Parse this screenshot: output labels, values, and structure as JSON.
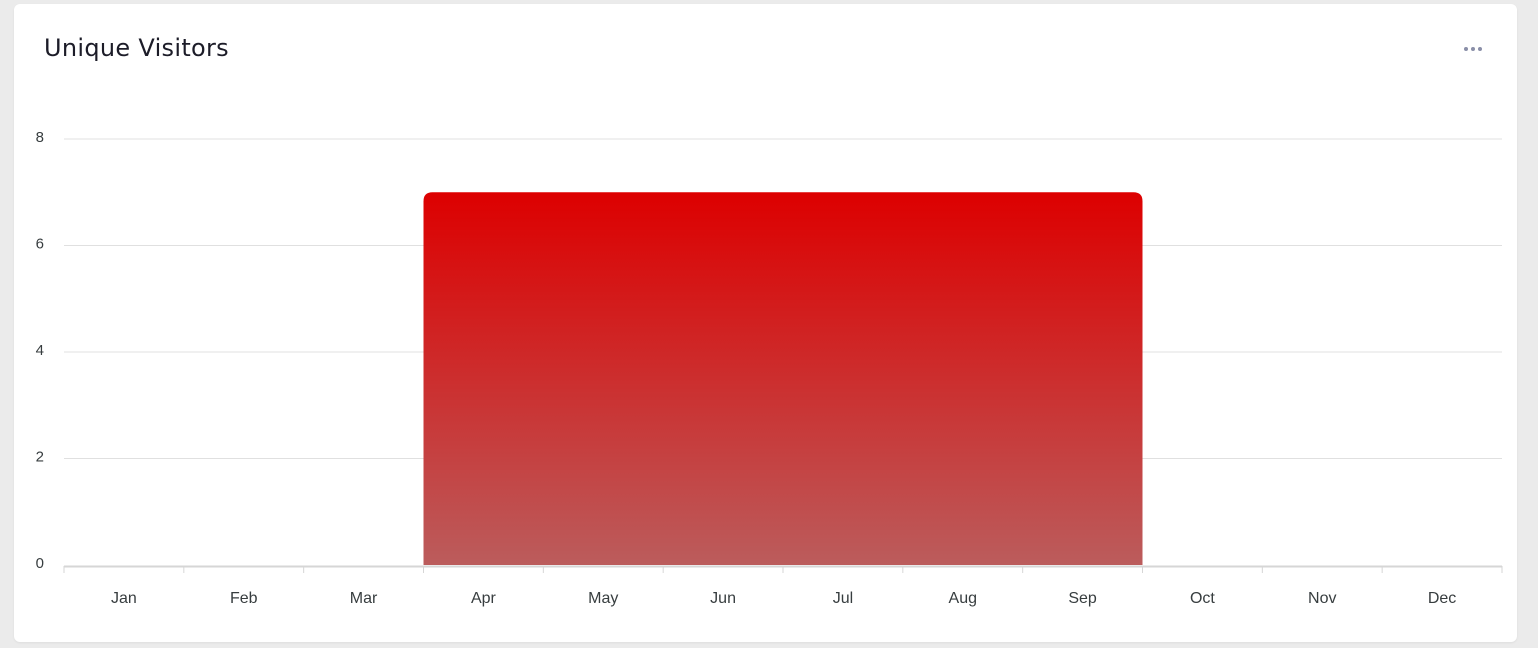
{
  "card": {
    "title": "Unique Visitors",
    "menu_icon": "more-horizontal-icon"
  },
  "colors": {
    "bar_top": "#dd0000",
    "bar_bottom": "#bb5c5c",
    "grid": "#e0e0e0",
    "axis": "#d6d6d6"
  },
  "chart_data": {
    "type": "bar",
    "title": "Unique Visitors",
    "categories": [
      "Jan",
      "Feb",
      "Mar",
      "Apr",
      "May",
      "Jun",
      "Jul",
      "Aug",
      "Sep",
      "Oct",
      "Nov",
      "Dec"
    ],
    "bars": [
      {
        "from": "Apr",
        "to": "Sep",
        "value": 7
      }
    ],
    "yticks": [
      0,
      2,
      4,
      6,
      8
    ],
    "ylim": [
      0,
      8
    ],
    "xlabel": "",
    "ylabel": "",
    "grid": true,
    "legend": "none"
  }
}
